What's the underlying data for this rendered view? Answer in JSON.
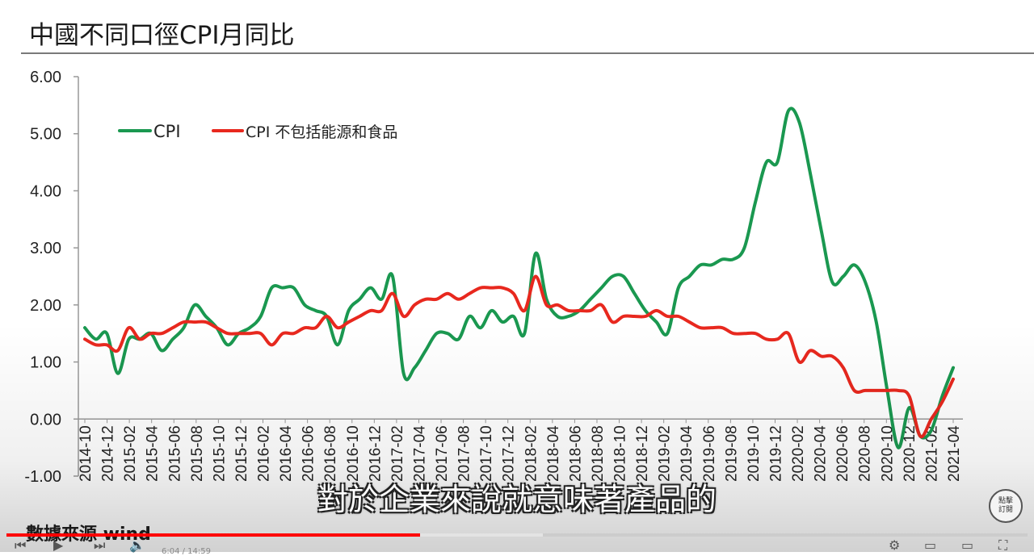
{
  "title": "中國不同口徑CPI月同比",
  "source_label": "數據來源 wind",
  "subtitle": "對於企業來說就意味著產品的",
  "subscribe_label": "點擊訂閱",
  "player": {
    "progress": 0.405,
    "buffered": 0.525,
    "time_text": "6:04 / 14:59"
  },
  "colors": {
    "cpi": "#1a9850",
    "core": "#e8281e"
  },
  "chart_data": {
    "type": "line",
    "title": "中國不同口徑CPI月同比",
    "ylim": [
      -1,
      6
    ],
    "yticks": [
      "6.00",
      "5.00",
      "4.00",
      "3.00",
      "2.00",
      "1.00",
      "0.00",
      "-1.00"
    ],
    "legend_position": "top-left",
    "x_labels": [
      "2014-10",
      "2014-12",
      "2015-02",
      "2015-04",
      "2015-06",
      "2015-08",
      "2015-10",
      "2015-12",
      "2016-02",
      "2016-04",
      "2016-06",
      "2016-08",
      "2016-10",
      "2016-12",
      "2017-02",
      "2017-04",
      "2017-06",
      "2017-08",
      "2017-10",
      "2017-12",
      "2018-02",
      "2018-04",
      "2018-06",
      "2018-08",
      "2018-10",
      "2018-12",
      "2019-02",
      "2019-04",
      "2019-06",
      "2019-08",
      "2019-10",
      "2019-12",
      "2020-02",
      "2020-04",
      "2020-06",
      "2020-08",
      "2020-10",
      "2020-12",
      "2021-02",
      "2021-04"
    ],
    "series": [
      {
        "name": "CPI",
        "color": "#1a9850",
        "values": [
          1.6,
          1.4,
          1.5,
          0.8,
          1.4,
          1.4,
          1.5,
          1.2,
          1.4,
          1.6,
          2.0,
          1.8,
          1.6,
          1.3,
          1.5,
          1.6,
          1.8,
          2.3,
          2.3,
          2.3,
          2.0,
          1.9,
          1.8,
          1.3,
          1.9,
          2.1,
          2.3,
          2.1,
          2.5,
          0.8,
          0.9,
          1.2,
          1.5,
          1.5,
          1.4,
          1.8,
          1.6,
          1.9,
          1.7,
          1.8,
          1.5,
          2.9,
          2.1,
          1.8,
          1.8,
          1.9,
          2.1,
          2.3,
          2.5,
          2.5,
          2.2,
          1.9,
          1.7,
          1.5,
          2.3,
          2.5,
          2.7,
          2.7,
          2.8,
          2.8,
          3.0,
          3.8,
          4.5,
          4.5,
          5.4,
          5.2,
          4.3,
          3.3,
          2.4,
          2.5,
          2.7,
          2.4,
          1.7,
          0.5,
          -0.5,
          0.2,
          -0.3,
          -0.2,
          0.4,
          0.9
        ],
        "x_start": "2014-10",
        "x_end": "2021-04"
      },
      {
        "name": "CPI 不包括能源和食品",
        "color": "#e8281e",
        "values": [
          1.4,
          1.3,
          1.3,
          1.2,
          1.6,
          1.4,
          1.5,
          1.5,
          1.6,
          1.7,
          1.7,
          1.7,
          1.6,
          1.5,
          1.5,
          1.5,
          1.5,
          1.3,
          1.5,
          1.5,
          1.6,
          1.6,
          1.8,
          1.6,
          1.7,
          1.8,
          1.9,
          1.9,
          2.2,
          1.8,
          2.0,
          2.1,
          2.1,
          2.2,
          2.1,
          2.2,
          2.3,
          2.3,
          2.3,
          2.2,
          1.9,
          2.5,
          2.0,
          2.0,
          1.9,
          1.9,
          1.9,
          2.0,
          1.7,
          1.8,
          1.8,
          1.8,
          1.9,
          1.8,
          1.8,
          1.7,
          1.6,
          1.6,
          1.6,
          1.5,
          1.5,
          1.5,
          1.4,
          1.4,
          1.5,
          1.0,
          1.2,
          1.1,
          1.1,
          0.9,
          0.5,
          0.5,
          0.5,
          0.5,
          0.5,
          0.4,
          -0.3,
          0.0,
          0.3,
          0.7
        ],
        "x_start": "2014-10",
        "x_end": "2021-04"
      }
    ]
  }
}
